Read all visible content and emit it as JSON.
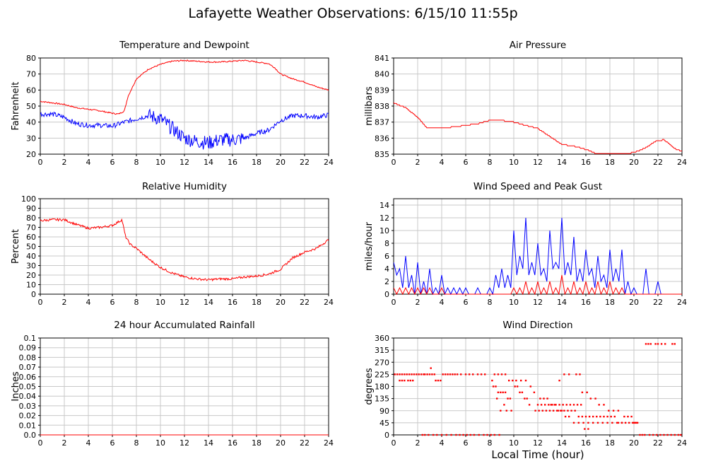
{
  "title": "Lafayette Weather Observations: 6/15/10 11:55p",
  "x_axis_caption": "Local Time (hour)",
  "colors": {
    "red": "#ff0000",
    "blue": "#0000ff",
    "grid": "#c8c8c8"
  },
  "chart_data": [
    {
      "id": "temperature",
      "type": "line",
      "title": "Temperature and Dewpoint",
      "xlabel": "",
      "ylabel": "Fahrenheit",
      "xlim": [
        0,
        24
      ],
      "ylim": [
        20,
        80
      ],
      "xticks": [
        0,
        2,
        4,
        6,
        8,
        10,
        12,
        14,
        16,
        18,
        20,
        22,
        24
      ],
      "yticks": [
        20,
        30,
        40,
        50,
        60,
        70,
        80
      ],
      "grid": true,
      "series": [
        {
          "color": "#ff0000",
          "noise": 0.4,
          "x": [
            0,
            1,
            2,
            3,
            4,
            5,
            6,
            6.5,
            7,
            7.3,
            8,
            9,
            10,
            11,
            12,
            13,
            14,
            15,
            16,
            17,
            18,
            19,
            19.5,
            20,
            21,
            22,
            23,
            24
          ],
          "y": [
            53,
            52,
            51,
            49,
            48,
            47,
            45.5,
            45,
            47,
            56,
            67,
            73,
            76,
            78,
            78.5,
            78,
            77.5,
            77.5,
            78,
            78.5,
            77.5,
            76.5,
            74,
            70,
            67,
            65,
            62,
            60
          ]
        },
        {
          "color": "#0000ff",
          "noise": 1.5,
          "x": [
            0,
            1,
            2,
            3,
            4,
            5,
            6,
            7,
            8,
            9,
            10,
            11,
            12,
            13,
            14,
            15,
            16,
            17,
            18,
            19,
            20,
            21,
            22,
            23,
            24
          ],
          "y": [
            45,
            45,
            43,
            39,
            38,
            38,
            37.5,
            40,
            42,
            44,
            42,
            36,
            30,
            28,
            27,
            29,
            29,
            30,
            33,
            35,
            41,
            44,
            44,
            43,
            44.5
          ]
        }
      ]
    },
    {
      "id": "pressure",
      "type": "line",
      "title": "Air Pressure",
      "xlabel": "",
      "ylabel": "millibars",
      "xlim": [
        0,
        24
      ],
      "ylim": [
        835,
        841
      ],
      "xticks": [
        0,
        2,
        4,
        6,
        8,
        10,
        12,
        14,
        16,
        18,
        20,
        22,
        24
      ],
      "yticks": [
        835,
        836,
        837,
        838,
        839,
        840,
        841
      ],
      "grid": true,
      "series": [
        {
          "color": "#ff0000",
          "step": 0.08,
          "noise": 0,
          "x": [
            0,
            1,
            2,
            2.8,
            4,
            5,
            6,
            7,
            8,
            9,
            10,
            11,
            12,
            13,
            14,
            15,
            16,
            17,
            18,
            19,
            20,
            21,
            21.8,
            22.5,
            23,
            23.5,
            24
          ],
          "y": [
            838.2,
            837.9,
            837.3,
            836.6,
            836.6,
            836.7,
            836.8,
            836.9,
            837.1,
            837.1,
            837.0,
            836.8,
            836.6,
            836.1,
            835.6,
            835.5,
            835.3,
            835.0,
            835.0,
            835.0,
            835.1,
            835.4,
            835.8,
            835.9,
            835.6,
            835.3,
            835.2
          ]
        }
      ]
    },
    {
      "id": "humidity",
      "type": "line",
      "title": "Relative Humidity",
      "xlabel": "",
      "ylabel": "Percent",
      "xlim": [
        0,
        24
      ],
      "ylim": [
        0,
        100
      ],
      "xticks": [
        0,
        2,
        4,
        6,
        8,
        10,
        12,
        14,
        16,
        18,
        20,
        22,
        24
      ],
      "yticks": [
        0,
        10,
        20,
        30,
        40,
        50,
        60,
        70,
        80,
        90,
        100
      ],
      "grid": true,
      "series": [
        {
          "color": "#ff0000",
          "noise": 1.2,
          "x": [
            0,
            1,
            2,
            3,
            4,
            5,
            6,
            6.8,
            7.1,
            7.5,
            8,
            9,
            10,
            11,
            12,
            13,
            14,
            15,
            16,
            17,
            18,
            19,
            20,
            21,
            22,
            23,
            24
          ],
          "y": [
            77,
            78,
            78,
            73,
            69,
            70,
            72,
            78,
            60,
            52,
            48,
            37,
            28,
            22,
            18,
            16,
            15,
            16,
            16,
            18,
            19,
            21,
            26,
            38,
            44,
            48,
            57
          ]
        }
      ]
    },
    {
      "id": "wind-speed",
      "type": "line",
      "title": "Wind Speed and Peak Gust",
      "xlabel": "",
      "ylabel": "miles/hour",
      "xlim": [
        0,
        24
      ],
      "ylim": [
        0,
        15
      ],
      "xticks": [
        0,
        2,
        4,
        6,
        8,
        10,
        12,
        14,
        16,
        18,
        20,
        22,
        24
      ],
      "yticks": [
        0,
        2,
        4,
        6,
        8,
        10,
        12,
        14
      ],
      "grid": true,
      "series": [
        {
          "color": "#0000ff",
          "jagged": true,
          "x": [
            0,
            0.5,
            1,
            1.5,
            2,
            2.5,
            3,
            3.5,
            4,
            4.5,
            5,
            5.5,
            6,
            6.5,
            7,
            7.5,
            8,
            8.5,
            9,
            9.5,
            10,
            10.5,
            11,
            11.5,
            12,
            12.5,
            13,
            13.5,
            14,
            14.5,
            15,
            15.5,
            16,
            16.5,
            17,
            17.5,
            18,
            18.5,
            19,
            19.5,
            20,
            20.5,
            21,
            21.5,
            22,
            22.5,
            23,
            23.5,
            24
          ],
          "y": [
            5,
            4,
            6,
            3,
            5,
            2,
            4,
            1,
            3,
            1,
            1,
            1,
            1,
            0,
            1,
            0,
            1,
            3,
            4,
            3,
            10,
            6,
            12,
            5,
            8,
            4,
            10,
            5,
            12,
            5,
            9,
            4,
            7,
            4,
            6,
            3,
            7,
            4,
            7,
            2,
            1,
            0,
            4,
            0,
            2,
            0,
            0,
            0,
            0
          ]
        },
        {
          "color": "#ff0000",
          "jagged": true,
          "x": [
            0,
            0.5,
            1,
            1.5,
            2,
            2.5,
            3,
            3.5,
            4,
            4.5,
            5,
            5.5,
            6,
            6.5,
            7,
            7.5,
            8,
            8.5,
            9,
            9.5,
            10,
            10.5,
            11,
            11.5,
            12,
            12.5,
            13,
            13.5,
            14,
            14.5,
            15,
            15.5,
            16,
            16.5,
            17,
            17.5,
            18,
            18.5,
            19,
            19.5,
            20,
            20.5,
            21,
            21.5,
            22,
            22.5,
            23,
            23.5,
            24
          ],
          "y": [
            1,
            1,
            1,
            1,
            1,
            1,
            1,
            0,
            1,
            0,
            0,
            0,
            0,
            0,
            0,
            0,
            0,
            0,
            0,
            0,
            1,
            1,
            2,
            1,
            2,
            1,
            2,
            1,
            3,
            1,
            2,
            1,
            2,
            1,
            2,
            1,
            2,
            1,
            1,
            0,
            0,
            0,
            0,
            0,
            0,
            0,
            0,
            0,
            0
          ]
        }
      ]
    },
    {
      "id": "rainfall",
      "type": "line",
      "title": "24 hour Accumulated Rainfall",
      "xlabel": "",
      "ylabel": "Inches",
      "xlim": [
        0,
        24
      ],
      "ylim": [
        0,
        0.1
      ],
      "xticks": [
        0,
        2,
        4,
        6,
        8,
        10,
        12,
        14,
        16,
        18,
        20,
        22,
        24
      ],
      "yticks": [
        "0.0",
        "0.01",
        "0.02",
        "0.03",
        "0.04",
        "0.05",
        "0.06",
        "0.07",
        "0.08",
        "0.09",
        "0.1"
      ],
      "grid": true,
      "series": [
        {
          "color": "#ff0000",
          "noise": 0,
          "x": [
            0,
            24
          ],
          "y": [
            0,
            0
          ]
        }
      ]
    },
    {
      "id": "wind-direction",
      "type": "scatter",
      "title": "Wind Direction",
      "xlabel": "Local Time (hour)",
      "ylabel": "degrees",
      "xlim": [
        0,
        24
      ],
      "ylim": [
        0,
        360
      ],
      "xticks": [
        0,
        2,
        4,
        6,
        8,
        10,
        12,
        14,
        16,
        18,
        20,
        22,
        24
      ],
      "yticks": [
        0,
        45,
        90,
        135,
        180,
        225,
        270,
        315,
        360
      ],
      "grid": true,
      "series": [
        {
          "color": "#ff0000",
          "x": [
            0.1,
            0.3,
            0.5,
            0.7,
            0.9,
            1.1,
            1.3,
            1.5,
            1.7,
            1.9,
            2.1,
            2.3,
            0.5,
            0.7,
            0.9,
            1.2,
            1.4,
            1.6,
            2.5,
            2.6,
            2.8,
            3.0,
            3.2,
            3.4,
            3.1,
            3.5,
            3.7,
            3.9,
            4.1,
            4.3,
            4.5,
            4.7,
            4.9,
            5.1,
            5.3,
            5.6,
            6.0,
            6.3,
            6.6,
            7.0,
            7.3,
            7.6,
            2.4,
            2.6,
            2.9,
            3.3,
            3.6,
            4.0,
            4.4,
            4.8,
            5.2,
            5.5,
            5.8,
            6.1,
            6.4,
            6.7,
            7.1,
            7.5,
            7.8,
            8.1,
            8.4,
            8.8,
            8.2,
            8.5,
            8.7,
            8.9,
            9.1,
            9.3,
            9.5,
            9.7,
            8.3,
            8.6,
            8.9,
            9.2,
            9.4,
            9.8,
            10.1,
            10.3,
            10.5,
            10.7,
            10.9,
            11.1,
            11.3,
            8.4,
            8.7,
            9.0,
            9.3,
            9.6,
            9.9,
            10.2,
            10.6,
            11.0,
            11.4,
            11.7,
            12.0,
            12.3,
            12.6,
            12.9,
            13.2,
            13.5,
            13.8,
            14.1,
            14.4,
            14.7,
            15.0,
            15.3,
            15.6,
            11.8,
            12.1,
            12.4,
            12.7,
            13.0,
            13.3,
            13.6,
            13.9,
            14.2,
            14.5,
            14.8,
            15.1,
            15.4,
            15.7,
            16.0,
            16.3,
            16.6,
            16.9,
            17.2,
            17.5,
            17.8,
            18.1,
            18.4,
            18.7,
            19.0,
            12.2,
            12.5,
            12.8,
            13.1,
            13.4,
            13.7,
            14.0,
            14.3,
            14.6,
            15.0,
            15.4,
            15.8,
            16.2,
            16.6,
            17.0,
            17.4,
            17.8,
            18.2,
            18.6,
            19.0,
            19.3,
            19.6,
            19.9,
            20.1,
            19.2,
            19.5,
            19.8,
            20.0,
            20.2,
            20.3,
            20.5,
            20.7,
            20.9,
            21.3,
            21.6,
            21.9,
            22.2,
            22.5,
            22.8,
            23.1,
            23.4,
            23.7,
            23.9,
            21.0,
            21.2,
            21.4,
            21.8,
            22.0,
            22.3,
            22.6,
            23.2,
            23.4,
            13.8,
            14.2,
            14.6,
            15.2,
            15.5,
            15.7,
            16.1,
            16.4,
            16.8,
            17.1,
            17.5,
            17.9,
            18.3,
            18.7,
            16.2,
            15.9
          ],
          "y": [
            225,
            225,
            225,
            225,
            225,
            225,
            225,
            225,
            225,
            225,
            225,
            225,
            202,
            202,
            202,
            202,
            202,
            202,
            225,
            225,
            225,
            225,
            225,
            225,
            248,
            202,
            202,
            202,
            225,
            225,
            225,
            225,
            225,
            225,
            225,
            225,
            225,
            225,
            225,
            225,
            225,
            225,
            0,
            0,
            0,
            0,
            0,
            0,
            0,
            0,
            0,
            0,
            0,
            0,
            0,
            0,
            0,
            0,
            0,
            0,
            0,
            0,
            202,
            180,
            158,
            158,
            158,
            158,
            135,
            135,
            180,
            135,
            90,
            112,
            90,
            90,
            180,
            180,
            158,
            158,
            135,
            135,
            112,
            225,
            225,
            225,
            225,
            202,
            202,
            202,
            202,
            202,
            180,
            158,
            112,
            112,
            112,
            112,
            112,
            112,
            112,
            112,
            112,
            112,
            112,
            112,
            112,
            90,
            90,
            90,
            90,
            90,
            90,
            90,
            90,
            90,
            90,
            90,
            90,
            68,
            68,
            68,
            68,
            68,
            68,
            68,
            68,
            68,
            68,
            68,
            45,
            45,
            135,
            135,
            135,
            112,
            112,
            90,
            90,
            68,
            68,
            45,
            45,
            45,
            45,
            45,
            45,
            45,
            45,
            45,
            45,
            45,
            45,
            45,
            45,
            45,
            68,
            68,
            68,
            45,
            45,
            45,
            0,
            0,
            0,
            0,
            0,
            0,
            0,
            0,
            0,
            0,
            0,
            0,
            0,
            338,
            338,
            338,
            338,
            338,
            338,
            338,
            338,
            338,
            202,
            225,
            225,
            225,
            225,
            158,
            158,
            135,
            135,
            112,
            112,
            90,
            90,
            90,
            22,
            22
          ]
        }
      ]
    }
  ]
}
